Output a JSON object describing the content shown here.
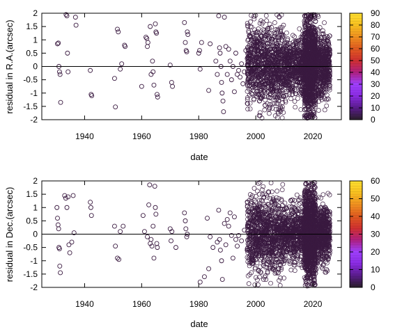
{
  "chart_data": [
    {
      "type": "scatter",
      "title": "",
      "xlabel": "date",
      "ylabel": "residual in R.A.(arcsec)",
      "xlim": [
        1925,
        2030
      ],
      "ylim": [
        -2,
        2
      ],
      "xticks": [
        "1940",
        "1960",
        "1980",
        "2000",
        "2020"
      ],
      "yticks": [
        "-2",
        "-1.5",
        "-1",
        "-0.5",
        "0",
        "0.5",
        "1",
        "1.5",
        "2"
      ],
      "zero_line": true,
      "colorbar": {
        "range": [
          0,
          90
        ],
        "ticks": [
          "0",
          "10",
          "20",
          "30",
          "40",
          "50",
          "60",
          "70",
          "80",
          "90"
        ]
      },
      "points": [
        [
          1930.5,
          0.85
        ],
        [
          1930.8,
          0.88
        ],
        [
          1931.0,
          0.0
        ],
        [
          1931.2,
          -0.2
        ],
        [
          1931.4,
          -0.3
        ],
        [
          1931.6,
          -1.35
        ],
        [
          1933.5,
          1.95
        ],
        [
          1933.8,
          1.9
        ],
        [
          1934.0,
          0.5
        ],
        [
          1934.2,
          -0.2
        ],
        [
          1936.8,
          1.85
        ],
        [
          1937.0,
          1.55
        ],
        [
          1942.0,
          -0.15
        ],
        [
          1942.3,
          -1.05
        ],
        [
          1942.5,
          -1.1
        ],
        [
          1950.5,
          -0.45
        ],
        [
          1950.8,
          -1.52
        ],
        [
          1951.5,
          1.4
        ],
        [
          1951.8,
          1.3
        ],
        [
          1952.5,
          -0.1
        ],
        [
          1953.0,
          0.1
        ],
        [
          1954.0,
          0.8
        ],
        [
          1954.2,
          0.75
        ],
        [
          1960.0,
          -0.75
        ],
        [
          1961.5,
          1.1
        ],
        [
          1961.8,
          1.05
        ],
        [
          1962.0,
          0.75
        ],
        [
          1962.2,
          0.9
        ],
        [
          1963.0,
          1.5
        ],
        [
          1963.3,
          -0.3
        ],
        [
          1963.8,
          0.2
        ],
        [
          1964.0,
          -0.2
        ],
        [
          1964.3,
          -0.7
        ],
        [
          1964.8,
          1.6
        ],
        [
          1965.0,
          1.3
        ],
        [
          1965.2,
          1.25
        ],
        [
          1965.4,
          -1.05
        ],
        [
          1965.6,
          -1.15
        ],
        [
          1970.0,
          0.05
        ],
        [
          1970.5,
          -0.6
        ],
        [
          1970.8,
          -0.75
        ],
        [
          1975.0,
          1.65
        ],
        [
          1975.3,
          0.9
        ],
        [
          1975.6,
          0.6
        ],
        [
          1975.8,
          0.55
        ],
        [
          1976.0,
          1.3
        ],
        [
          1976.2,
          1.2
        ],
        [
          1980.0,
          0.5
        ],
        [
          1980.3,
          0.6
        ],
        [
          1980.5,
          -0.1
        ],
        [
          1981.0,
          0.9
        ],
        [
          1983.5,
          -0.9
        ],
        [
          1984.0,
          0.85
        ],
        [
          1986.0,
          0.2
        ],
        [
          1986.5,
          -0.3
        ],
        [
          1987.0,
          1.9
        ],
        [
          1987.3,
          0.7
        ],
        [
          1987.5,
          0.5
        ],
        [
          1987.8,
          0.0
        ],
        [
          1988.0,
          -0.6
        ],
        [
          1988.2,
          -1.0
        ],
        [
          1988.5,
          -1.3
        ],
        [
          1988.7,
          -1.7
        ],
        [
          1989.0,
          1.85
        ],
        [
          1989.5,
          0.75
        ],
        [
          1990.0,
          -0.3
        ],
        [
          1990.5,
          0.65
        ],
        [
          1991.0,
          0.2
        ],
        [
          1991.5,
          -0.5
        ],
        [
          1992.0,
          0.0
        ],
        [
          1992.5,
          -0.95
        ],
        [
          1993.0,
          0.5
        ],
        [
          1993.5,
          -0.3
        ],
        [
          1994.0,
          -0.15
        ],
        [
          1994.5,
          -0.4
        ],
        [
          1995.0,
          0.1
        ],
        [
          1995.5,
          -0.65
        ],
        [
          1996.0,
          -0.2
        ],
        [
          1996.5,
          0.6
        ],
        [
          1997.0,
          0.3
        ]
      ],
      "dense_regions": [
        {
          "from": 1997,
          "to": 2010,
          "spread": 1.7,
          "count": 900
        },
        {
          "from": 2010,
          "to": 2017,
          "spread": 1.2,
          "count": 500
        },
        {
          "from": 2017,
          "to": 2021,
          "spread": 1.9,
          "count": 1200
        },
        {
          "from": 2021,
          "to": 2026,
          "spread": 1.3,
          "count": 500
        }
      ]
    },
    {
      "type": "scatter",
      "title": "",
      "xlabel": "date",
      "ylabel": "residual in Dec.(arcsec)",
      "xlim": [
        1925,
        2030
      ],
      "ylim": [
        -2,
        2
      ],
      "xticks": [
        "1940",
        "1960",
        "1980",
        "2000",
        "2020"
      ],
      "yticks": [
        "-2",
        "-1.5",
        "-1",
        "-0.5",
        "0",
        "0.5",
        "1",
        "1.5",
        "2"
      ],
      "zero_line": true,
      "colorbar": {
        "range": [
          0,
          60
        ],
        "ticks": [
          "0",
          "10",
          "20",
          "30",
          "40",
          "50",
          "60"
        ]
      },
      "points": [
        [
          1930.3,
          1.0
        ],
        [
          1930.5,
          0.6
        ],
        [
          1930.7,
          0.35
        ],
        [
          1930.9,
          0.2
        ],
        [
          1931.0,
          -0.5
        ],
        [
          1931.2,
          -0.55
        ],
        [
          1931.3,
          -1.2
        ],
        [
          1931.5,
          -1.45
        ],
        [
          1933.0,
          1.45
        ],
        [
          1933.4,
          1.35
        ],
        [
          1933.8,
          1.0
        ],
        [
          1934.2,
          1.4
        ],
        [
          1934.5,
          -0.4
        ],
        [
          1934.8,
          -0.7
        ],
        [
          1935.5,
          -0.3
        ],
        [
          1936.0,
          1.45
        ],
        [
          1936.3,
          0.05
        ],
        [
          1942.0,
          1.2
        ],
        [
          1942.2,
          1.0
        ],
        [
          1942.4,
          0.7
        ],
        [
          1950.5,
          0.3
        ],
        [
          1950.8,
          -0.45
        ],
        [
          1951.5,
          -0.9
        ],
        [
          1952.0,
          -0.95
        ],
        [
          1952.5,
          0.1
        ],
        [
          1953.5,
          0.3
        ],
        [
          1960.5,
          0.7
        ],
        [
          1961.0,
          0.1
        ],
        [
          1962.0,
          -0.1
        ],
        [
          1962.5,
          1.1
        ],
        [
          1962.8,
          1.85
        ],
        [
          1963.0,
          -0.35
        ],
        [
          1963.3,
          -0.2
        ],
        [
          1963.6,
          -0.45
        ],
        [
          1964.0,
          0.3
        ],
        [
          1964.3,
          -0.9
        ],
        [
          1964.6,
          1.8
        ],
        [
          1964.8,
          1.0
        ],
        [
          1965.0,
          0.75
        ],
        [
          1965.3,
          -0.35
        ],
        [
          1965.5,
          -0.5
        ],
        [
          1970.0,
          0.2
        ],
        [
          1970.3,
          -0.25
        ],
        [
          1970.6,
          0.1
        ],
        [
          1972.0,
          -0.5
        ],
        [
          1975.0,
          0.8
        ],
        [
          1975.3,
          0.5
        ],
        [
          1975.5,
          0.2
        ],
        [
          1975.8,
          -0.1
        ],
        [
          1976.0,
          0.0
        ],
        [
          1980.5,
          -1.8
        ],
        [
          1982.0,
          -1.6
        ],
        [
          1983.0,
          0.6
        ],
        [
          1983.5,
          -1.3
        ],
        [
          1984.0,
          -0.1
        ],
        [
          1985.0,
          -0.5
        ],
        [
          1986.5,
          -0.3
        ],
        [
          1987.0,
          0.9
        ],
        [
          1987.3,
          -0.2
        ],
        [
          1987.6,
          -0.6
        ],
        [
          1988.0,
          -1.0
        ],
        [
          1988.3,
          -1.7
        ],
        [
          1989.0,
          0.4
        ],
        [
          1989.5,
          -0.4
        ],
        [
          1990.0,
          0.55
        ],
        [
          1990.5,
          0.3
        ],
        [
          1991.0,
          0.8
        ],
        [
          1991.5,
          -0.05
        ],
        [
          1992.0,
          -0.9
        ],
        [
          1992.5,
          0.65
        ],
        [
          1993.0,
          -0.2
        ],
        [
          1993.5,
          -0.45
        ],
        [
          1994.0,
          -0.05
        ],
        [
          1995.0,
          -0.25
        ],
        [
          1996.0,
          0.15
        ],
        [
          1997.0,
          -0.6
        ]
      ],
      "dense_regions": [
        {
          "from": 1997,
          "to": 2010,
          "spread": 1.6,
          "count": 900
        },
        {
          "from": 2010,
          "to": 2017,
          "spread": 1.1,
          "count": 500
        },
        {
          "from": 2017,
          "to": 2021,
          "spread": 1.8,
          "count": 1200
        },
        {
          "from": 2021,
          "to": 2026,
          "spread": 1.2,
          "count": 500
        }
      ]
    }
  ]
}
